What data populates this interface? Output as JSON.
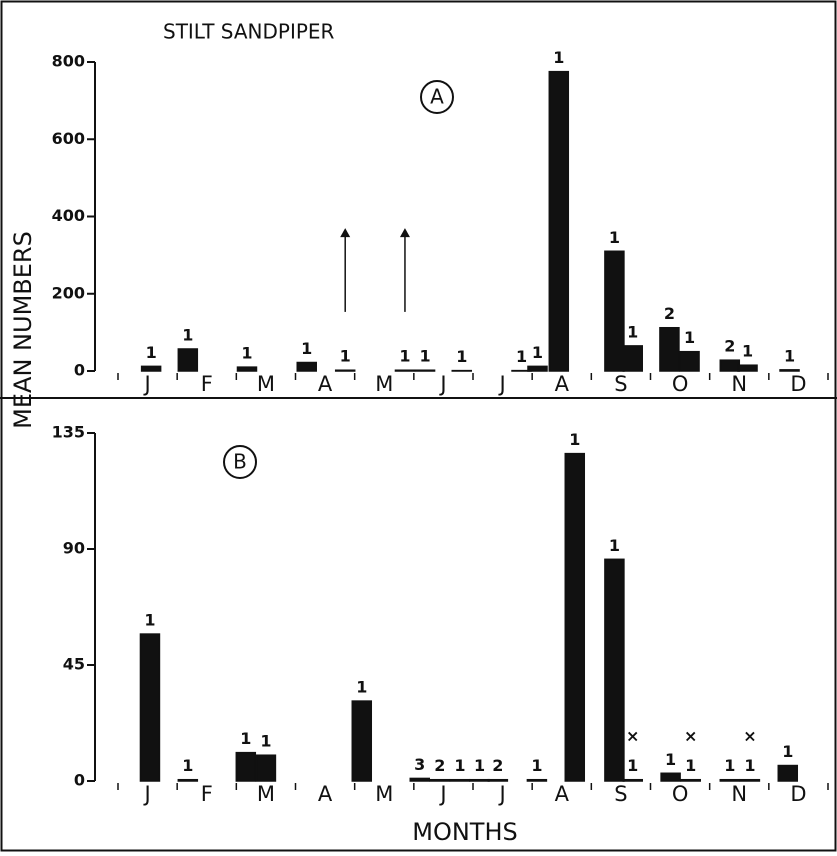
{
  "chart_data": [
    {
      "type": "bar",
      "title": "STILT SANDPIPER",
      "ylabel": "MEAN NUMBERS",
      "panel": "A",
      "color": "#111111",
      "x": [
        0.56,
        1.18,
        2.18,
        3.19,
        3.84,
        4.85,
        5.19,
        5.81,
        6.82,
        7.09,
        7.45,
        8.39,
        8.7,
        9.32,
        9.66,
        10.34,
        10.64,
        11.35
      ],
      "values": [
        12,
        57,
        10,
        22,
        2,
        2,
        2,
        1,
        1,
        12,
        775,
        310,
        65,
        112,
        50,
        28,
        15,
        3
      ],
      "bar_labels": [
        "1",
        "1",
        "1",
        "1",
        "1",
        "1",
        "1",
        "1",
        "1",
        "1",
        "1",
        "1",
        "1",
        "2",
        "1",
        "2",
        "1",
        "1"
      ],
      "arrows": [
        {
          "x": 3.84,
          "from": 153,
          "to": 370
        },
        {
          "x": 4.85,
          "from": 153,
          "to": 370
        }
      ],
      "xlim": [
        0,
        12
      ],
      "xticks": [
        {
          "value": 0.5,
          "label": "J"
        },
        {
          "value": 1.5,
          "label": "F"
        },
        {
          "value": 2.5,
          "label": "M"
        },
        {
          "value": 3.5,
          "label": "A"
        },
        {
          "value": 4.5,
          "label": "M"
        },
        {
          "value": 5.5,
          "label": "J"
        },
        {
          "value": 6.5,
          "label": "J"
        },
        {
          "value": 7.5,
          "label": "A"
        },
        {
          "value": 8.5,
          "label": "S"
        },
        {
          "value": 9.5,
          "label": "O"
        },
        {
          "value": 10.5,
          "label": "N"
        },
        {
          "value": 11.5,
          "label": "D"
        }
      ],
      "ylim": [
        0,
        800
      ],
      "yticks": [
        0,
        200,
        400,
        600,
        800
      ]
    },
    {
      "type": "bar",
      "xlabel": "MONTHS",
      "panel": "B",
      "color": "#111111",
      "x": [
        0.54,
        1.18,
        2.16,
        2.5,
        4.12,
        5.1,
        5.44,
        5.78,
        6.11,
        6.42,
        7.08,
        7.72,
        8.39,
        8.7,
        9.34,
        9.68,
        10.34,
        10.68,
        11.32
      ],
      "values": [
        57,
        0.5,
        11,
        10,
        31,
        1,
        0.5,
        0.5,
        0.5,
        0.5,
        0.5,
        127,
        86,
        0.5,
        3,
        0.5,
        0.5,
        0.5,
        6
      ],
      "bar_labels": [
        "1",
        "1",
        "1",
        "1",
        "1",
        "3",
        "2",
        "1",
        "1",
        "2",
        "1",
        "1",
        "1",
        "1",
        "1",
        "1",
        "1",
        "1",
        "1"
      ],
      "markers": [
        {
          "x": 8.7,
          "y": 17,
          "text": "×"
        },
        {
          "x": 9.68,
          "y": 17,
          "text": "×"
        },
        {
          "x": 10.68,
          "y": 17,
          "text": "×"
        }
      ],
      "xlim": [
        0,
        12
      ],
      "xticks": [
        {
          "value": 0.5,
          "label": "J"
        },
        {
          "value": 1.5,
          "label": "F"
        },
        {
          "value": 2.5,
          "label": "M"
        },
        {
          "value": 3.5,
          "label": "A"
        },
        {
          "value": 4.5,
          "label": "M"
        },
        {
          "value": 5.5,
          "label": "J"
        },
        {
          "value": 6.5,
          "label": "J"
        },
        {
          "value": 7.5,
          "label": "A"
        },
        {
          "value": 8.5,
          "label": "S"
        },
        {
          "value": 9.5,
          "label": "O"
        },
        {
          "value": 10.5,
          "label": "N"
        },
        {
          "value": 11.5,
          "label": "D"
        }
      ],
      "ylim": [
        0,
        135
      ],
      "yticks": [
        0,
        45,
        90,
        135
      ]
    }
  ]
}
